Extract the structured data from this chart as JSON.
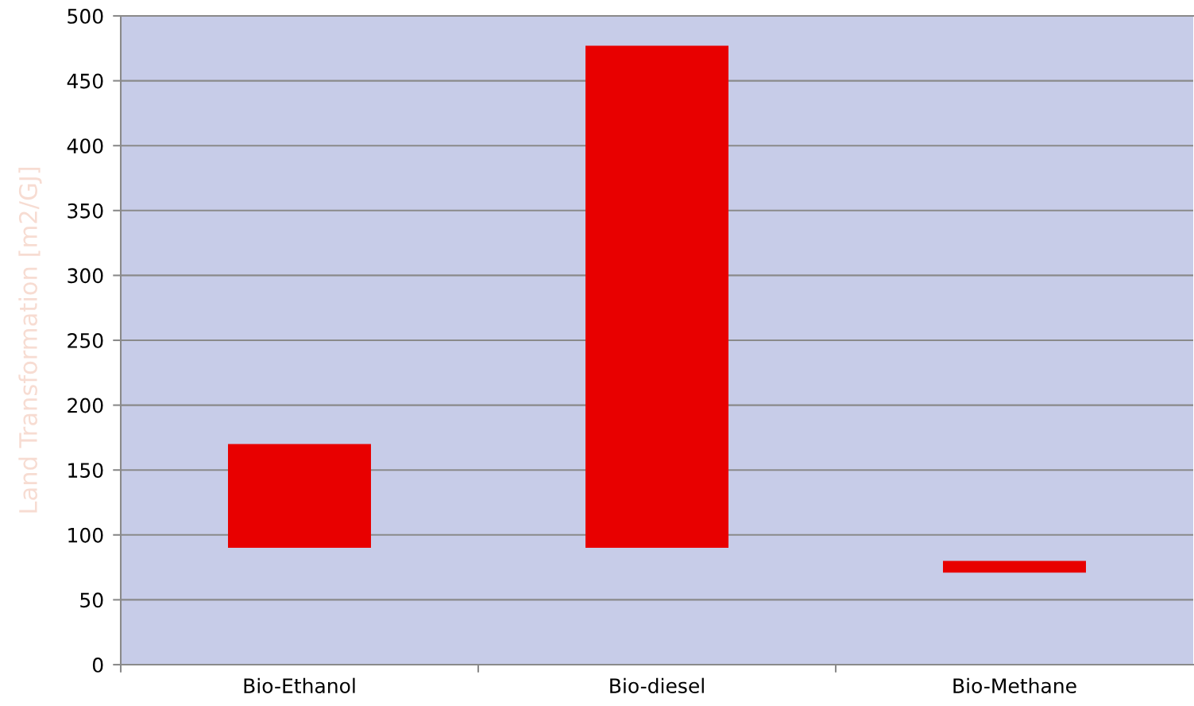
{
  "chart_data": {
    "type": "bar",
    "ylabel": "Land Transformation [m2/GJ]",
    "categories": [
      "Bio-Ethanol",
      "Bio-diesel",
      "Bio-Methane"
    ],
    "base": [
      90,
      90,
      71
    ],
    "values": [
      80,
      387,
      9
    ],
    "color": "#e80000",
    "ylim": [
      0,
      500
    ],
    "yticks": [
      0,
      50,
      100,
      150,
      200,
      250,
      300,
      350,
      400,
      450,
      500
    ],
    "grid": "y"
  }
}
